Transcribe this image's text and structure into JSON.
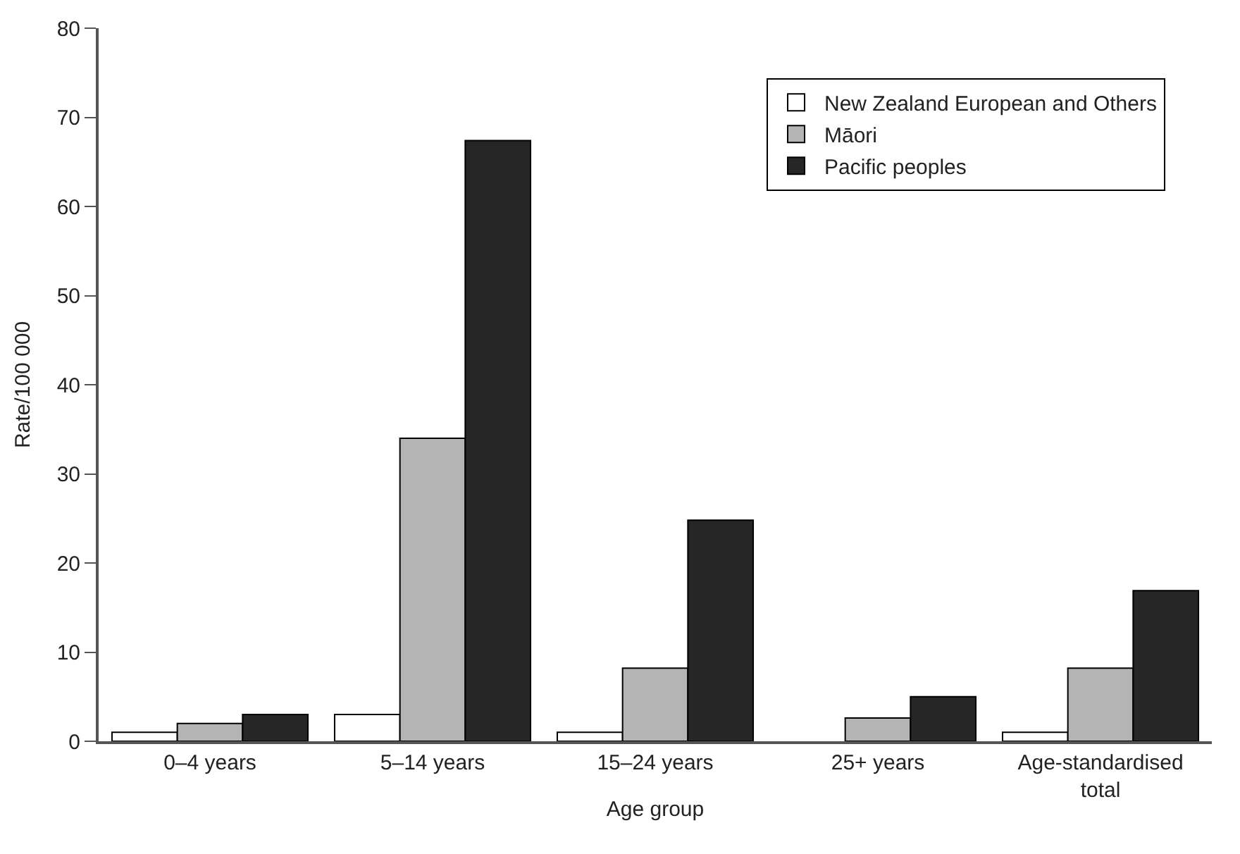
{
  "chart_data": {
    "type": "bar",
    "xlabel": "Age group",
    "ylabel": "Rate/100 000",
    "categories": [
      "0–4 years",
      "5–14 years",
      "15–24 years",
      "25+ years",
      "Age-standardised total"
    ],
    "series": [
      {
        "name": "New Zealand European and Others",
        "color": "#ffffff",
        "values": [
          1,
          3,
          1,
          null,
          1
        ]
      },
      {
        "name": "Māori",
        "color": "#b4b4b4",
        "values": [
          2,
          34,
          8.2,
          2.6,
          8.2
        ]
      },
      {
        "name": "Pacific peoples",
        "color": "#262626",
        "values": [
          3,
          67.4,
          24.8,
          5,
          16.9
        ]
      }
    ],
    "ylim": [
      0,
      80
    ],
    "yticks": [
      0,
      10,
      20,
      30,
      40,
      50,
      60,
      70,
      80
    ],
    "legend": "top right"
  }
}
